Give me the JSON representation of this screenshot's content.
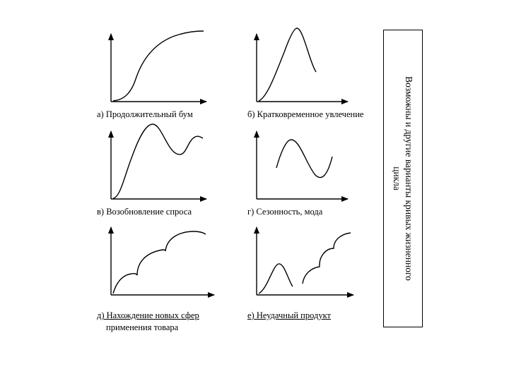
{
  "side_title": {
    "line1": "Возможны и другие варианты кривых жизненного",
    "line2": "цикла"
  },
  "panels": [
    {
      "id": "a",
      "caption": "а) Продолжительный бум",
      "underlined": false
    },
    {
      "id": "b",
      "caption": "б) Кратковременное увлечение",
      "underlined": false
    },
    {
      "id": "c",
      "caption": "в) Возобновление спроса",
      "underlined": false
    },
    {
      "id": "d",
      "caption": "г) Сезонность, мода",
      "underlined": false
    },
    {
      "id": "e",
      "caption": "д) Нахождение новых сфер",
      "caption2": "применения товара",
      "underlined": true
    },
    {
      "id": "f",
      "caption": "е) Неудачный продукт",
      "underlined": true
    }
  ]
}
